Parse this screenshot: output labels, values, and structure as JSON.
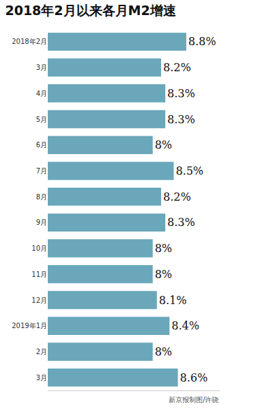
{
  "chart_data": {
    "type": "bar",
    "title": "2018年2月以来各月M2增速",
    "orientation": "horizontal",
    "categories": [
      "2018年2月",
      "3月",
      "4月",
      "5月",
      "6月",
      "7月",
      "8月",
      "9月",
      "10月",
      "11月",
      "12月",
      "2019年1月",
      "2月",
      "3月"
    ],
    "values": [
      8.8,
      8.2,
      8.3,
      8.3,
      8,
      8.5,
      8.2,
      8.3,
      8,
      8,
      8.1,
      8.4,
      8,
      8.6
    ],
    "value_labels": [
      "8.8%",
      "8.2%",
      "8.3%",
      "8.3%",
      "8%",
      "8.5%",
      "8.2%",
      "8.3%",
      "8%",
      "8%",
      "8.1%",
      "8.4%",
      "8%",
      "8.6%"
    ],
    "color": "#6aa7ba",
    "data_labels": true,
    "xlim": [
      5.5,
      9.6
    ],
    "tick_labels": "y",
    "grid": false,
    "annotations": [
      {
        "text": "新京报制图/许骁"
      }
    ]
  }
}
